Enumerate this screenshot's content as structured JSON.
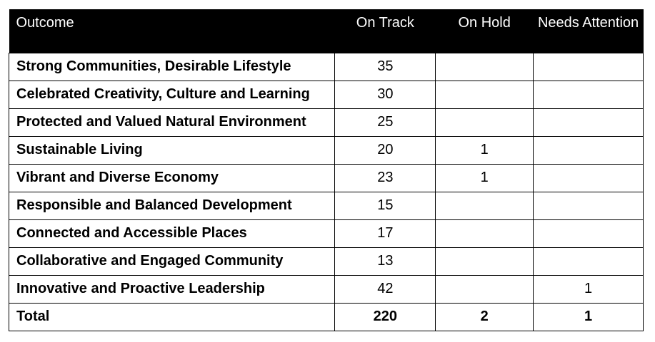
{
  "chart_data": {
    "type": "table",
    "headers": [
      "Outcome",
      "On Track",
      "On Hold",
      "Needs Attention"
    ],
    "rows": [
      {
        "outcome": "Strong Communities, Desirable Lifestyle",
        "on_track": "35",
        "on_hold": "",
        "needs_attention": ""
      },
      {
        "outcome": "Celebrated Creativity, Culture and Learning",
        "on_track": "30",
        "on_hold": "",
        "needs_attention": ""
      },
      {
        "outcome": "Protected and Valued Natural Environment",
        "on_track": "25",
        "on_hold": "",
        "needs_attention": ""
      },
      {
        "outcome": "Sustainable Living",
        "on_track": "20",
        "on_hold": "1",
        "needs_attention": ""
      },
      {
        "outcome": "Vibrant and Diverse Economy",
        "on_track": "23",
        "on_hold": "1",
        "needs_attention": ""
      },
      {
        "outcome": "Responsible and Balanced Development",
        "on_track": "15",
        "on_hold": "",
        "needs_attention": ""
      },
      {
        "outcome": "Connected and Accessible Places",
        "on_track": "17",
        "on_hold": "",
        "needs_attention": ""
      },
      {
        "outcome": "Collaborative and Engaged Community",
        "on_track": "13",
        "on_hold": "",
        "needs_attention": ""
      },
      {
        "outcome": "Innovative and Proactive Leadership",
        "on_track": "42",
        "on_hold": "",
        "needs_attention": "1"
      }
    ],
    "total": {
      "outcome": "Total",
      "on_track": "220",
      "on_hold": "2",
      "needs_attention": "1"
    }
  },
  "colors": {
    "header_background": "#000000",
    "header_text": "#ffffff",
    "border": "#000000"
  }
}
